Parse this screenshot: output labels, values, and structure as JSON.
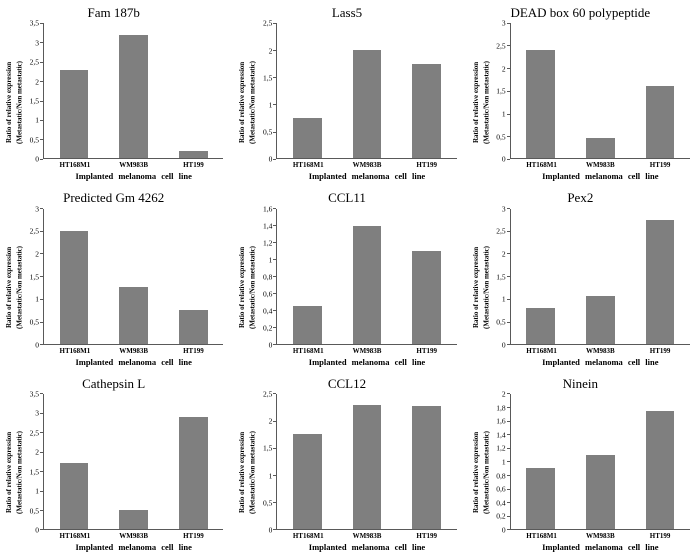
{
  "figure": {
    "background": "#ffffff",
    "bar_color": "#7f7f7f",
    "axis_color": "#595959"
  },
  "chart_data": [
    {
      "type": "bar",
      "title": "Fam 187b",
      "ylabel": "Ratio of relative expression",
      "ylabel2": "(Metastatic/Non metastatic)",
      "xlabel": "Implanted melanoma cell line",
      "categories": [
        "HT168M1",
        "WM983B",
        "HT199"
      ],
      "values": [
        2.3,
        3.2,
        0.2
      ],
      "ylim": [
        0,
        3.5
      ],
      "yticks": [
        "0",
        "0,5",
        "1",
        "1,5",
        "2",
        "2,5",
        "3",
        "3,5"
      ],
      "grid": false,
      "legend": false
    },
    {
      "type": "bar",
      "title": "Lass5",
      "ylabel": "Ratio of relative expression",
      "ylabel2": "(Metastatic/Non metastatic)",
      "xlabel": "Implanted melanoma cell line",
      "categories": [
        "HT168M1",
        "WM983B",
        "HT199"
      ],
      "values": [
        0.75,
        2.0,
        1.75
      ],
      "ylim": [
        0,
        2.5
      ],
      "yticks": [
        "0",
        "0,5",
        "1",
        "1,5",
        "2",
        "2,5"
      ],
      "grid": false,
      "legend": false
    },
    {
      "type": "bar",
      "title": "DEAD box 60 polypeptide",
      "ylabel": "Ratio of relative expression",
      "ylabel2": "(Metastatic/Non metastatic)",
      "xlabel": "Implanted melanoma cell line",
      "categories": [
        "HT168M1",
        "WM983B",
        "HT199"
      ],
      "values": [
        2.4,
        0.45,
        1.6
      ],
      "ylim": [
        0,
        3
      ],
      "yticks": [
        "0",
        "0,5",
        "1",
        "1,5",
        "2",
        "2,5",
        "3"
      ],
      "grid": false,
      "legend": false
    },
    {
      "type": "bar",
      "title": "Predicted Gm 4262",
      "ylabel": "Ratio of relative expression",
      "ylabel2": "(Metastatic/Non metastatic)",
      "xlabel": "Implanted melanoma cell line",
      "categories": [
        "HT168M1",
        "WM983B",
        "HT199"
      ],
      "values": [
        2.5,
        1.25,
        0.75
      ],
      "ylim": [
        0,
        3
      ],
      "yticks": [
        "0",
        "0,5",
        "1",
        "1,5",
        "2",
        "2,5",
        "3"
      ],
      "grid": false,
      "legend": false
    },
    {
      "type": "bar",
      "title": "CCL11",
      "ylabel": "Ratio of relative expression",
      "ylabel2": "(Metastatic/Non metastatic)",
      "xlabel": "Implanted melanoma cell line",
      "categories": [
        "HT168M1",
        "WM983B",
        "HT199"
      ],
      "values": [
        0.45,
        1.4,
        1.1
      ],
      "ylim": [
        0,
        1.6
      ],
      "yticks": [
        "0",
        "0,2",
        "0,4",
        "0,6",
        "0,8",
        "1",
        "1,2",
        "1,4",
        "1,6"
      ],
      "grid": false,
      "legend": false
    },
    {
      "type": "bar",
      "title": "Pex2",
      "ylabel": "Ratio of relative expression",
      "ylabel2": "(Metastatic/Non metastatic)",
      "xlabel": "Implanted melanoma cell line",
      "categories": [
        "HT168M1",
        "WM983B",
        "HT199"
      ],
      "values": [
        0.8,
        1.05,
        2.75
      ],
      "ylim": [
        0,
        3
      ],
      "yticks": [
        "0",
        "0,5",
        "1",
        "1,5",
        "2",
        "2,5",
        "3"
      ],
      "grid": false,
      "legend": false
    },
    {
      "type": "bar",
      "title": "Cathepsin L",
      "ylabel": "Ratio of relative expression",
      "ylabel2": "(Metastatic/Non metastatic)",
      "xlabel": "Implanted melanoma cell line",
      "categories": [
        "HT168M1",
        "WM983B",
        "HT199"
      ],
      "values": [
        1.7,
        0.5,
        2.9
      ],
      "ylim": [
        0,
        3.5
      ],
      "yticks": [
        "0",
        "0,5",
        "1",
        "1,5",
        "2",
        "2,5",
        "3",
        "3,5"
      ],
      "grid": false,
      "legend": false
    },
    {
      "type": "bar",
      "title": "CCL12",
      "ylabel": "Ratio of relative expression",
      "ylabel2": "(Metastatic/Non metastatic)",
      "xlabel": "Implanted melanoma cell line",
      "categories": [
        "HT168M1",
        "WM983B",
        "HT199"
      ],
      "values": [
        1.75,
        2.3,
        2.28
      ],
      "ylim": [
        0,
        2.5
      ],
      "yticks": [
        "0",
        "0,5",
        "1",
        "1,5",
        "2",
        "2,5"
      ],
      "grid": false,
      "legend": false
    },
    {
      "type": "bar",
      "title": "Ninein",
      "ylabel": "Ratio of relative expression",
      "ylabel2": "(Metastatic/Non metastatic)",
      "xlabel": "Implanted melanoma cell line",
      "categories": [
        "HT168M1",
        "WM983B",
        "HT199"
      ],
      "values": [
        0.9,
        1.1,
        1.75
      ],
      "ylim": [
        0,
        2
      ],
      "yticks": [
        "0",
        "0,2",
        "0,4",
        "0,6",
        "0,8",
        "1",
        "1,2",
        "1,4",
        "1,6",
        "1,8",
        "2"
      ],
      "grid": false,
      "legend": false
    }
  ]
}
